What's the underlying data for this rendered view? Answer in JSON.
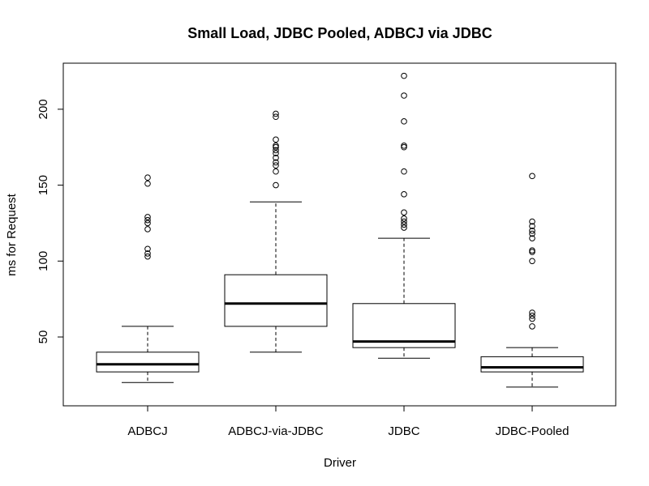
{
  "chart_data": {
    "type": "boxplot",
    "title": "Small Load, JDBC Pooled, ADBCJ via JDBC",
    "xlabel": "Driver",
    "ylabel": "ms for Request",
    "ylim": [
      10,
      225
    ],
    "y_ticks": [
      50,
      100,
      150,
      200
    ],
    "grid": false,
    "legend": "none",
    "categories": [
      "ADBCJ",
      "ADBCJ-via-JDBC",
      "JDBC",
      "JDBC-Pooled"
    ],
    "boxes": [
      {
        "category": "ADBCJ",
        "whisker_low": 20,
        "q1": 27,
        "median": 32,
        "q3": 40,
        "whisker_high": 57,
        "outliers": [
          103,
          105,
          108,
          121,
          125,
          127,
          129,
          151,
          155
        ]
      },
      {
        "category": "ADBCJ-via-JDBC",
        "whisker_low": 40,
        "q1": 57,
        "median": 72,
        "q3": 91,
        "whisker_high": 139,
        "outliers": [
          150,
          159,
          163,
          165,
          168,
          171,
          173,
          175,
          176,
          180,
          195,
          197
        ]
      },
      {
        "category": "JDBC",
        "whisker_low": 36,
        "q1": 43,
        "median": 47,
        "q3": 72,
        "whisker_high": 115,
        "outliers": [
          122,
          124,
          126,
          128,
          132,
          144,
          159,
          175,
          176,
          192,
          209,
          222
        ]
      },
      {
        "category": "JDBC-Pooled",
        "whisker_low": 17,
        "q1": 27,
        "median": 30,
        "q3": 37,
        "whisker_high": 43,
        "outliers": [
          57,
          62,
          64,
          66,
          100,
          106,
          107,
          115,
          118,
          120,
          123,
          126,
          156
        ]
      }
    ]
  }
}
